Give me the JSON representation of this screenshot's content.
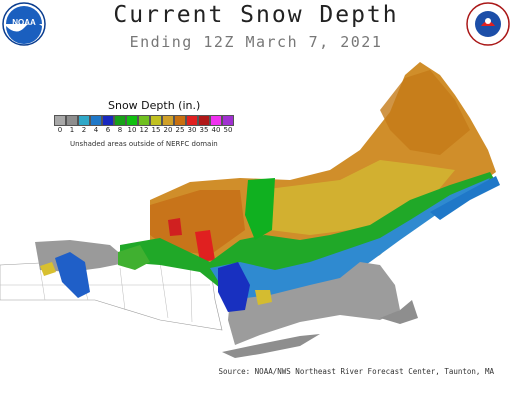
{
  "header": {
    "title": "Current Snow Depth",
    "subtitle": "Ending 12Z March  7, 2021"
  },
  "logos": {
    "left": {
      "text": "NOAA",
      "icon": "noaa-logo"
    },
    "right": {
      "text": "NATIONAL WEATHER SERVICE",
      "icon": "nws-logo"
    }
  },
  "legend": {
    "title": "Snow Depth (in.)",
    "ticks": [
      "0",
      "1",
      "2",
      "4",
      "6",
      "8",
      "10",
      "12",
      "15",
      "20",
      "25",
      "30",
      "35",
      "40",
      "50"
    ],
    "colors": [
      "#a8a8a8",
      "#8e8e8e",
      "#2fa8c8",
      "#1f78c8",
      "#1828c0",
      "#18a018",
      "#10c010",
      "#70c020",
      "#c0c020",
      "#d0a028",
      "#c87010",
      "#e02020",
      "#b01818",
      "#f030f0",
      "#a030d0"
    ],
    "note": "Unshaded areas outside of NERFC domain"
  },
  "footer": {
    "source": "Source: NOAA/NWS Northeast River Forecast Center, Taunton, MA"
  }
}
